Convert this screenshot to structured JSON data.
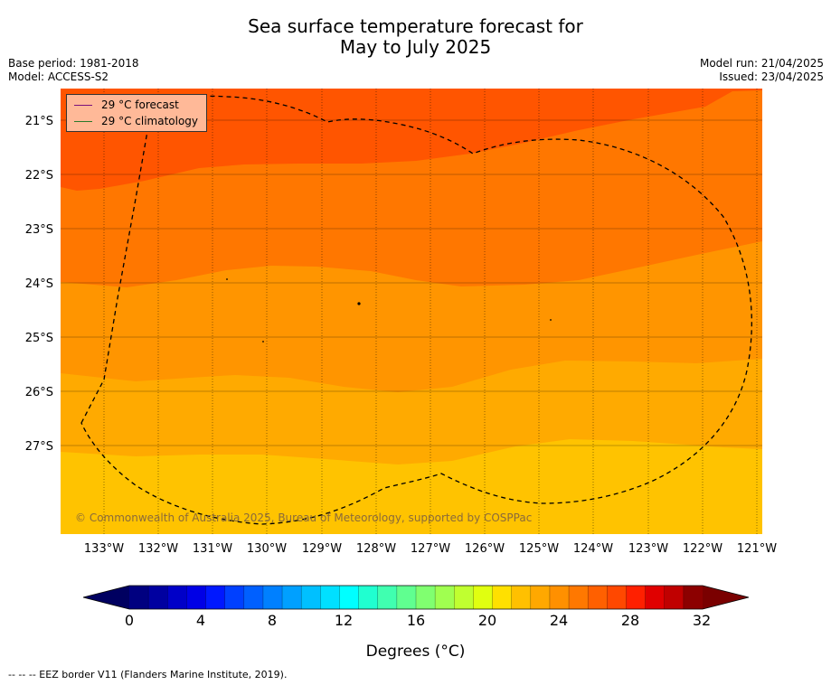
{
  "title_line1": "Sea surface temperature forecast for",
  "title_line2": "May to July 2025",
  "base_period": "Base period: 1981-2018",
  "model": "Model: ACCESS-S2",
  "model_run": "Model run: 21/04/2025",
  "issued": "Issued: 23/04/2025",
  "legend": {
    "forecast_label": "29 °C  forecast",
    "forecast_color": "#7b0f7b",
    "climatology_label": "29 °C  climatology",
    "climatology_color": "#2a7a2a"
  },
  "copyright": "© Commonwealth of Australia 2025, Bureau of Meteorology, supported by COSPPac",
  "lat_labels": [
    "21°S",
    "22°S",
    "23°S",
    "24°S",
    "25°S",
    "26°S",
    "27°S"
  ],
  "lon_labels": [
    "133°W",
    "132°W",
    "131°W",
    "130°W",
    "129°W",
    "128°W",
    "127°W",
    "126°W",
    "125°W",
    "124°W",
    "123°W",
    "122°W",
    "121°W"
  ],
  "colorbar": {
    "min": 0,
    "max": 32,
    "step": 1,
    "tick_labels": [
      "0",
      "4",
      "8",
      "12",
      "16",
      "20",
      "24",
      "28",
      "32"
    ],
    "label": "Degrees (°C)",
    "colors": [
      "#000080",
      "#0000a0",
      "#0000c8",
      "#0000e6",
      "#0018ff",
      "#0040ff",
      "#0060ff",
      "#0080ff",
      "#00a0ff",
      "#00c0ff",
      "#00e0ff",
      "#00ffff",
      "#20ffd0",
      "#40ffb0",
      "#60ff90",
      "#80ff70",
      "#a0ff50",
      "#c0ff30",
      "#e0ff10",
      "#ffe000",
      "#ffc000",
      "#ffa800",
      "#ff9000",
      "#ff7800",
      "#ff6000",
      "#ff4800",
      "#ff2000",
      "#e00000",
      "#c00000",
      "#8c0000"
    ],
    "under_color": "#000060",
    "over_color": "#7a0000"
  },
  "temperature_bands": [
    {
      "range": "28-29",
      "color": "#ff5500"
    },
    {
      "range": "27-28",
      "color": "#ff7700"
    },
    {
      "range": "26-27",
      "color": "#ff9500"
    },
    {
      "range": "25-26",
      "color": "#ffaa00"
    },
    {
      "range": "24-25",
      "color": "#ffc300"
    }
  ],
  "footnote": "--  --  -- EEZ border V11 (Flanders Marine Institute, 2019)."
}
